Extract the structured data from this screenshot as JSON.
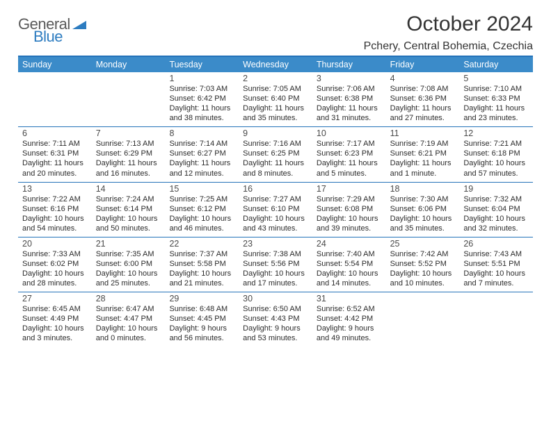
{
  "logo": {
    "line1": "General",
    "line2": "Blue",
    "accent": "#2d7cc0",
    "text_color": "#5a5a5a"
  },
  "title": "October 2024",
  "location": "Pchery, Central Bohemia, Czechia",
  "colors": {
    "header_bg": "#3b8bc9",
    "rule": "#2372b9",
    "text": "#2b2b2b",
    "daynum": "#4a4a4a"
  },
  "day_names": [
    "Sunday",
    "Monday",
    "Tuesday",
    "Wednesday",
    "Thursday",
    "Friday",
    "Saturday"
  ],
  "weeks": [
    [
      {
        "n": "",
        "sr": "",
        "ss": "",
        "dl": ""
      },
      {
        "n": "",
        "sr": "",
        "ss": "",
        "dl": ""
      },
      {
        "n": "1",
        "sr": "Sunrise: 7:03 AM",
        "ss": "Sunset: 6:42 PM",
        "dl": "Daylight: 11 hours and 38 minutes."
      },
      {
        "n": "2",
        "sr": "Sunrise: 7:05 AM",
        "ss": "Sunset: 6:40 PM",
        "dl": "Daylight: 11 hours and 35 minutes."
      },
      {
        "n": "3",
        "sr": "Sunrise: 7:06 AM",
        "ss": "Sunset: 6:38 PM",
        "dl": "Daylight: 11 hours and 31 minutes."
      },
      {
        "n": "4",
        "sr": "Sunrise: 7:08 AM",
        "ss": "Sunset: 6:36 PM",
        "dl": "Daylight: 11 hours and 27 minutes."
      },
      {
        "n": "5",
        "sr": "Sunrise: 7:10 AM",
        "ss": "Sunset: 6:33 PM",
        "dl": "Daylight: 11 hours and 23 minutes."
      }
    ],
    [
      {
        "n": "6",
        "sr": "Sunrise: 7:11 AM",
        "ss": "Sunset: 6:31 PM",
        "dl": "Daylight: 11 hours and 20 minutes."
      },
      {
        "n": "7",
        "sr": "Sunrise: 7:13 AM",
        "ss": "Sunset: 6:29 PM",
        "dl": "Daylight: 11 hours and 16 minutes."
      },
      {
        "n": "8",
        "sr": "Sunrise: 7:14 AM",
        "ss": "Sunset: 6:27 PM",
        "dl": "Daylight: 11 hours and 12 minutes."
      },
      {
        "n": "9",
        "sr": "Sunrise: 7:16 AM",
        "ss": "Sunset: 6:25 PM",
        "dl": "Daylight: 11 hours and 8 minutes."
      },
      {
        "n": "10",
        "sr": "Sunrise: 7:17 AM",
        "ss": "Sunset: 6:23 PM",
        "dl": "Daylight: 11 hours and 5 minutes."
      },
      {
        "n": "11",
        "sr": "Sunrise: 7:19 AM",
        "ss": "Sunset: 6:21 PM",
        "dl": "Daylight: 11 hours and 1 minute."
      },
      {
        "n": "12",
        "sr": "Sunrise: 7:21 AM",
        "ss": "Sunset: 6:18 PM",
        "dl": "Daylight: 10 hours and 57 minutes."
      }
    ],
    [
      {
        "n": "13",
        "sr": "Sunrise: 7:22 AM",
        "ss": "Sunset: 6:16 PM",
        "dl": "Daylight: 10 hours and 54 minutes."
      },
      {
        "n": "14",
        "sr": "Sunrise: 7:24 AM",
        "ss": "Sunset: 6:14 PM",
        "dl": "Daylight: 10 hours and 50 minutes."
      },
      {
        "n": "15",
        "sr": "Sunrise: 7:25 AM",
        "ss": "Sunset: 6:12 PM",
        "dl": "Daylight: 10 hours and 46 minutes."
      },
      {
        "n": "16",
        "sr": "Sunrise: 7:27 AM",
        "ss": "Sunset: 6:10 PM",
        "dl": "Daylight: 10 hours and 43 minutes."
      },
      {
        "n": "17",
        "sr": "Sunrise: 7:29 AM",
        "ss": "Sunset: 6:08 PM",
        "dl": "Daylight: 10 hours and 39 minutes."
      },
      {
        "n": "18",
        "sr": "Sunrise: 7:30 AM",
        "ss": "Sunset: 6:06 PM",
        "dl": "Daylight: 10 hours and 35 minutes."
      },
      {
        "n": "19",
        "sr": "Sunrise: 7:32 AM",
        "ss": "Sunset: 6:04 PM",
        "dl": "Daylight: 10 hours and 32 minutes."
      }
    ],
    [
      {
        "n": "20",
        "sr": "Sunrise: 7:33 AM",
        "ss": "Sunset: 6:02 PM",
        "dl": "Daylight: 10 hours and 28 minutes."
      },
      {
        "n": "21",
        "sr": "Sunrise: 7:35 AM",
        "ss": "Sunset: 6:00 PM",
        "dl": "Daylight: 10 hours and 25 minutes."
      },
      {
        "n": "22",
        "sr": "Sunrise: 7:37 AM",
        "ss": "Sunset: 5:58 PM",
        "dl": "Daylight: 10 hours and 21 minutes."
      },
      {
        "n": "23",
        "sr": "Sunrise: 7:38 AM",
        "ss": "Sunset: 5:56 PM",
        "dl": "Daylight: 10 hours and 17 minutes."
      },
      {
        "n": "24",
        "sr": "Sunrise: 7:40 AM",
        "ss": "Sunset: 5:54 PM",
        "dl": "Daylight: 10 hours and 14 minutes."
      },
      {
        "n": "25",
        "sr": "Sunrise: 7:42 AM",
        "ss": "Sunset: 5:52 PM",
        "dl": "Daylight: 10 hours and 10 minutes."
      },
      {
        "n": "26",
        "sr": "Sunrise: 7:43 AM",
        "ss": "Sunset: 5:51 PM",
        "dl": "Daylight: 10 hours and 7 minutes."
      }
    ],
    [
      {
        "n": "27",
        "sr": "Sunrise: 6:45 AM",
        "ss": "Sunset: 4:49 PM",
        "dl": "Daylight: 10 hours and 3 minutes."
      },
      {
        "n": "28",
        "sr": "Sunrise: 6:47 AM",
        "ss": "Sunset: 4:47 PM",
        "dl": "Daylight: 10 hours and 0 minutes."
      },
      {
        "n": "29",
        "sr": "Sunrise: 6:48 AM",
        "ss": "Sunset: 4:45 PM",
        "dl": "Daylight: 9 hours and 56 minutes."
      },
      {
        "n": "30",
        "sr": "Sunrise: 6:50 AM",
        "ss": "Sunset: 4:43 PM",
        "dl": "Daylight: 9 hours and 53 minutes."
      },
      {
        "n": "31",
        "sr": "Sunrise: 6:52 AM",
        "ss": "Sunset: 4:42 PM",
        "dl": "Daylight: 9 hours and 49 minutes."
      },
      {
        "n": "",
        "sr": "",
        "ss": "",
        "dl": ""
      },
      {
        "n": "",
        "sr": "",
        "ss": "",
        "dl": ""
      }
    ]
  ]
}
